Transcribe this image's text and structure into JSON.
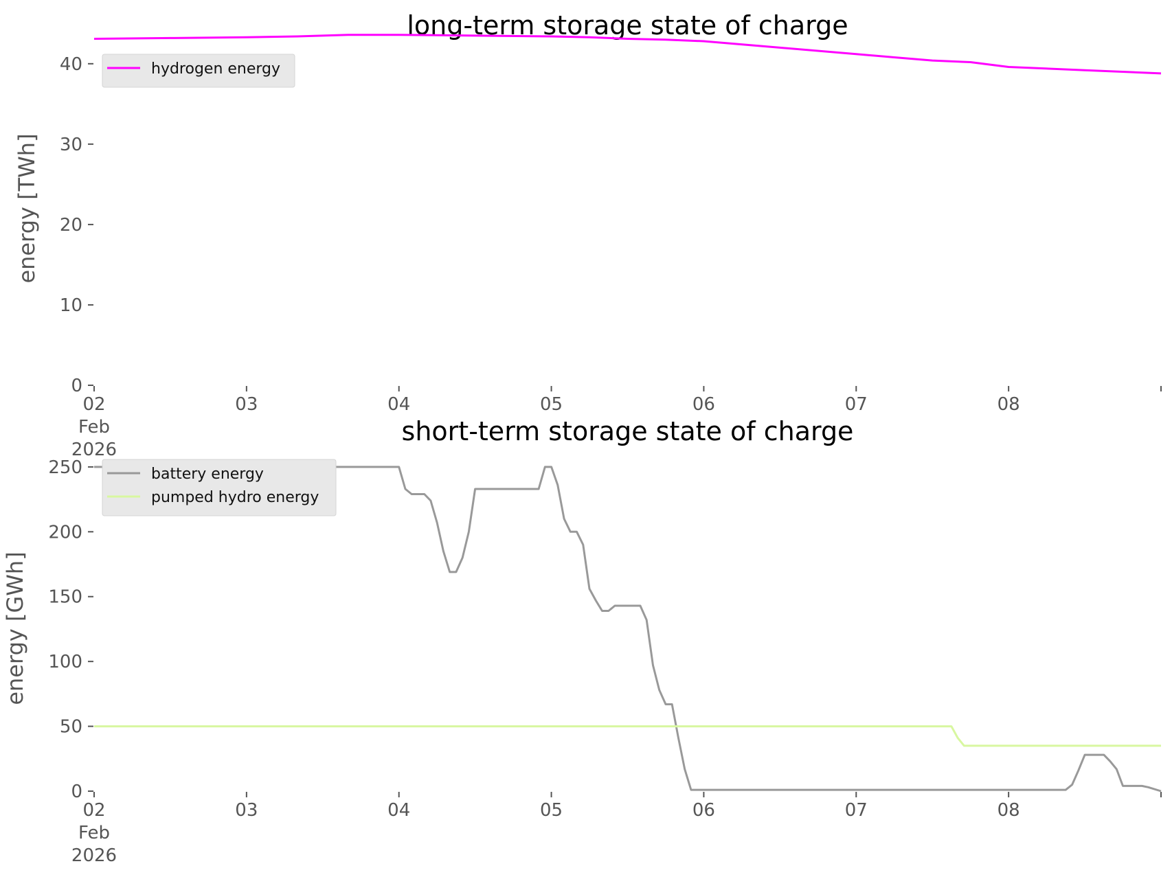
{
  "chart_data": [
    {
      "type": "line",
      "title": "long-term storage state of charge",
      "xlabel": "",
      "ylabel": "energy [TWh]",
      "ylim": [
        0,
        44
      ],
      "xlim": [
        "2026-02-02",
        "2026-02-09"
      ],
      "yticks": [
        0,
        10,
        20,
        30,
        40
      ],
      "xticks": [
        "02",
        "03",
        "04",
        "05",
        "06",
        "07",
        "08",
        ""
      ],
      "xtick_sublabel": [
        "Feb",
        "2026"
      ],
      "grid": false,
      "legend": "top-left",
      "series": [
        {
          "name": "hydrogen energy",
          "color": "#ff00ff",
          "x": [
            "2026-02-02 00:00",
            "2026-02-02 12:00",
            "2026-02-03 00:00",
            "2026-02-03 08:00",
            "2026-02-03 16:00",
            "2026-02-04 00:00",
            "2026-02-04 12:00",
            "2026-02-05 00:00",
            "2026-02-05 06:00",
            "2026-02-05 12:00",
            "2026-02-05 18:00",
            "2026-02-06 00:00",
            "2026-02-06 12:00",
            "2026-02-07 00:00",
            "2026-02-07 06:00",
            "2026-02-07 12:00",
            "2026-02-07 18:00",
            "2026-02-08 00:00",
            "2026-02-08 12:00",
            "2026-02-09 00:00"
          ],
          "y": [
            43.1,
            43.2,
            43.3,
            43.4,
            43.6,
            43.6,
            43.5,
            43.4,
            43.3,
            43.1,
            43.0,
            42.8,
            42.0,
            41.2,
            40.8,
            40.4,
            40.2,
            39.6,
            39.2,
            38.8
          ]
        }
      ]
    },
    {
      "type": "line",
      "title": "short-term storage state of charge",
      "xlabel": "",
      "ylabel": "energy [GWh]",
      "ylim": [
        0,
        251
      ],
      "xlim": [
        "2026-02-02",
        "2026-02-09"
      ],
      "yticks": [
        0,
        50,
        100,
        150,
        200,
        250
      ],
      "xticks": [
        "02",
        "03",
        "04",
        "05",
        "06",
        "07",
        "08",
        ""
      ],
      "xtick_sublabel": [
        "Feb",
        "2026"
      ],
      "grid": false,
      "legend": "top-left",
      "series": [
        {
          "name": "battery energy",
          "color": "#999999",
          "x": [
            "2026-02-02 00:00",
            "2026-02-04 00:00",
            "2026-02-04 01:00",
            "2026-02-04 02:00",
            "2026-02-04 04:00",
            "2026-02-04 05:00",
            "2026-02-04 06:00",
            "2026-02-04 07:00",
            "2026-02-04 08:00",
            "2026-02-04 09:00",
            "2026-02-04 10:00",
            "2026-02-04 11:00",
            "2026-02-04 12:00",
            "2026-02-04 13:00",
            "2026-02-04 22:00",
            "2026-02-04 23:00",
            "2026-02-05 00:00",
            "2026-02-05 01:00",
            "2026-02-05 02:00",
            "2026-02-05 03:00",
            "2026-02-05 04:00",
            "2026-02-05 05:00",
            "2026-02-05 06:00",
            "2026-02-05 07:00",
            "2026-02-05 08:00",
            "2026-02-05 09:00",
            "2026-02-05 10:00",
            "2026-02-05 11:00",
            "2026-02-05 14:00",
            "2026-02-05 15:00",
            "2026-02-05 16:00",
            "2026-02-05 17:00",
            "2026-02-05 18:00",
            "2026-02-05 19:00",
            "2026-02-05 20:00",
            "2026-02-05 21:00",
            "2026-02-05 22:00",
            "2026-02-05 23:00",
            "2026-02-07 00:00",
            "2026-02-08 00:00",
            "2026-02-08 09:00",
            "2026-02-08 10:00",
            "2026-02-08 11:00",
            "2026-02-08 12:00",
            "2026-02-08 15:00",
            "2026-02-08 16:00",
            "2026-02-08 17:00",
            "2026-02-08 18:00",
            "2026-02-08 21:00",
            "2026-02-08 22:00",
            "2026-02-09 00:00"
          ],
          "y": [
            250,
            250,
            233,
            229,
            229,
            224,
            207,
            185,
            169,
            169,
            180,
            200,
            233,
            233,
            233,
            250,
            250,
            236,
            210,
            200,
            200,
            190,
            156,
            147,
            139,
            139,
            143,
            143,
            143,
            132,
            97,
            78,
            67,
            67,
            41,
            17,
            1,
            1,
            1,
            1,
            1,
            5,
            16,
            28,
            28,
            23,
            17,
            4,
            4,
            3,
            0
          ]
        },
        {
          "name": "pumped hydro energy",
          "color": "#d8f7a0",
          "x": [
            "2026-02-02 00:00",
            "2026-02-07 15:00",
            "2026-02-07 16:00",
            "2026-02-07 17:00",
            "2026-02-09 00:00"
          ],
          "y": [
            50,
            50,
            41,
            35,
            35
          ]
        }
      ]
    }
  ]
}
